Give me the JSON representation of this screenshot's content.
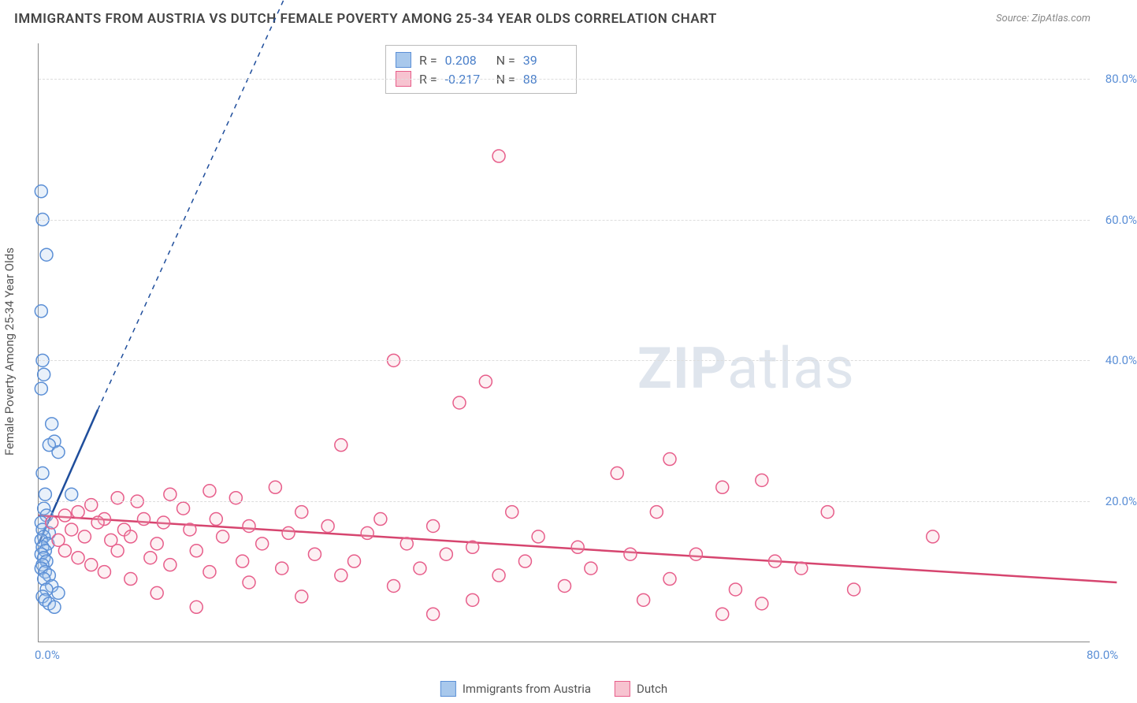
{
  "title": "IMMIGRANTS FROM AUSTRIA VS DUTCH FEMALE POVERTY AMONG 25-34 YEAR OLDS CORRELATION CHART",
  "source": "Source: ZipAtlas.com",
  "watermark": {
    "bold": "ZIP",
    "rest": "atlas"
  },
  "ylabel": "Female Poverty Among 25-34 Year Olds",
  "chart": {
    "type": "scatter",
    "xlim": [
      0,
      80
    ],
    "ylim": [
      0,
      85
    ],
    "xticks": [
      {
        "v": 0,
        "label": "0.0%"
      },
      {
        "v": 80,
        "label": "80.0%"
      }
    ],
    "yticks": [
      {
        "v": 20,
        "label": "20.0%"
      },
      {
        "v": 40,
        "label": "40.0%"
      },
      {
        "v": 60,
        "label": "60.0%"
      },
      {
        "v": 80,
        "label": "80.0%"
      }
    ],
    "gridlines_y": [
      20,
      40,
      60,
      80
    ],
    "grid_color": "#e0e0e0",
    "background_color": "#ffffff",
    "marker_radius": 8,
    "marker_stroke_width": 1.5,
    "marker_fill_opacity": 0.25,
    "series": [
      {
        "name": "Immigrants from Austria",
        "color_fill": "#a8c8ec",
        "color_stroke": "#5b8fd6",
        "R": "0.208",
        "N": "39",
        "trend": {
          "x1": 0,
          "y1": 14,
          "x2": 4.5,
          "y2": 33,
          "dash_x2": 22,
          "dash_y2": 105,
          "color": "#1f4e9c",
          "width": 2.5
        },
        "points": [
          [
            0.2,
            64
          ],
          [
            0.3,
            60
          ],
          [
            0.6,
            55
          ],
          [
            0.2,
            47
          ],
          [
            0.3,
            40
          ],
          [
            0.4,
            38
          ],
          [
            0.2,
            36
          ],
          [
            1.0,
            31
          ],
          [
            1.2,
            28.5
          ],
          [
            0.8,
            28
          ],
          [
            1.5,
            27
          ],
          [
            0.3,
            24
          ],
          [
            0.5,
            21
          ],
          [
            2.5,
            21
          ],
          [
            0.4,
            19
          ],
          [
            0.6,
            18
          ],
          [
            0.2,
            17
          ],
          [
            0.3,
            16
          ],
          [
            0.8,
            15.5
          ],
          [
            0.4,
            15
          ],
          [
            0.2,
            14.5
          ],
          [
            0.7,
            14
          ],
          [
            0.3,
            13.5
          ],
          [
            0.5,
            13
          ],
          [
            0.2,
            12.5
          ],
          [
            0.4,
            12
          ],
          [
            0.6,
            11.5
          ],
          [
            0.3,
            11
          ],
          [
            0.2,
            10.5
          ],
          [
            0.5,
            10
          ],
          [
            0.8,
            9.5
          ],
          [
            0.4,
            9
          ],
          [
            1.0,
            8
          ],
          [
            0.6,
            7.5
          ],
          [
            1.5,
            7
          ],
          [
            0.3,
            6.5
          ],
          [
            0.5,
            6
          ],
          [
            0.8,
            5.5
          ],
          [
            1.2,
            5
          ]
        ]
      },
      {
        "name": "Dutch",
        "color_fill": "#f7c3d0",
        "color_stroke": "#e75d8a",
        "R": "-0.217",
        "N": "88",
        "trend": {
          "x1": 0,
          "y1": 18,
          "x2": 82,
          "y2": 8.5,
          "color": "#d6456f",
          "width": 2.5
        },
        "points": [
          [
            35,
            69
          ],
          [
            27,
            40
          ],
          [
            34,
            37
          ],
          [
            32,
            34
          ],
          [
            23,
            28
          ],
          [
            48,
            26
          ],
          [
            44,
            24
          ],
          [
            55,
            23
          ],
          [
            18,
            22
          ],
          [
            52,
            22
          ],
          [
            13,
            21.5
          ],
          [
            10,
            21
          ],
          [
            6,
            20.5
          ],
          [
            15,
            20.5
          ],
          [
            7.5,
            20
          ],
          [
            4,
            19.5
          ],
          [
            11,
            19
          ],
          [
            3,
            18.5
          ],
          [
            20,
            18.5
          ],
          [
            36,
            18.5
          ],
          [
            47,
            18.5
          ],
          [
            60,
            18.5
          ],
          [
            2,
            18
          ],
          [
            5,
            17.5
          ],
          [
            8,
            17.5
          ],
          [
            13.5,
            17.5
          ],
          [
            26,
            17.5
          ],
          [
            1,
            17
          ],
          [
            4.5,
            17
          ],
          [
            9.5,
            17
          ],
          [
            16,
            16.5
          ],
          [
            22,
            16.5
          ],
          [
            30,
            16.5
          ],
          [
            2.5,
            16
          ],
          [
            6.5,
            16
          ],
          [
            11.5,
            16
          ],
          [
            19,
            15.5
          ],
          [
            25,
            15.5
          ],
          [
            3.5,
            15
          ],
          [
            7,
            15
          ],
          [
            14,
            15
          ],
          [
            38,
            15
          ],
          [
            68,
            15
          ],
          [
            1.5,
            14.5
          ],
          [
            5.5,
            14.5
          ],
          [
            9,
            14
          ],
          [
            17,
            14
          ],
          [
            28,
            14
          ],
          [
            33,
            13.5
          ],
          [
            41,
            13.5
          ],
          [
            2,
            13
          ],
          [
            6,
            13
          ],
          [
            12,
            13
          ],
          [
            21,
            12.5
          ],
          [
            31,
            12.5
          ],
          [
            45,
            12.5
          ],
          [
            50,
            12.5
          ],
          [
            3,
            12
          ],
          [
            8.5,
            12
          ],
          [
            15.5,
            11.5
          ],
          [
            24,
            11.5
          ],
          [
            37,
            11.5
          ],
          [
            56,
            11.5
          ],
          [
            4,
            11
          ],
          [
            10,
            11
          ],
          [
            18.5,
            10.5
          ],
          [
            29,
            10.5
          ],
          [
            42,
            10.5
          ],
          [
            58,
            10.5
          ],
          [
            5,
            10
          ],
          [
            13,
            10
          ],
          [
            23,
            9.5
          ],
          [
            35,
            9.5
          ],
          [
            48,
            9
          ],
          [
            7,
            9
          ],
          [
            16,
            8.5
          ],
          [
            27,
            8
          ],
          [
            40,
            8
          ],
          [
            53,
            7.5
          ],
          [
            62,
            7.5
          ],
          [
            9,
            7
          ],
          [
            20,
            6.5
          ],
          [
            33,
            6
          ],
          [
            46,
            6
          ],
          [
            55,
            5.5
          ],
          [
            12,
            5
          ],
          [
            30,
            4
          ],
          [
            52,
            4
          ]
        ]
      }
    ]
  },
  "bottom_legend": {
    "items": [
      {
        "label": "Immigrants from Austria",
        "fill": "#a8c8ec",
        "stroke": "#5b8fd6"
      },
      {
        "label": "Dutch",
        "fill": "#f7c3d0",
        "stroke": "#e75d8a"
      }
    ]
  }
}
